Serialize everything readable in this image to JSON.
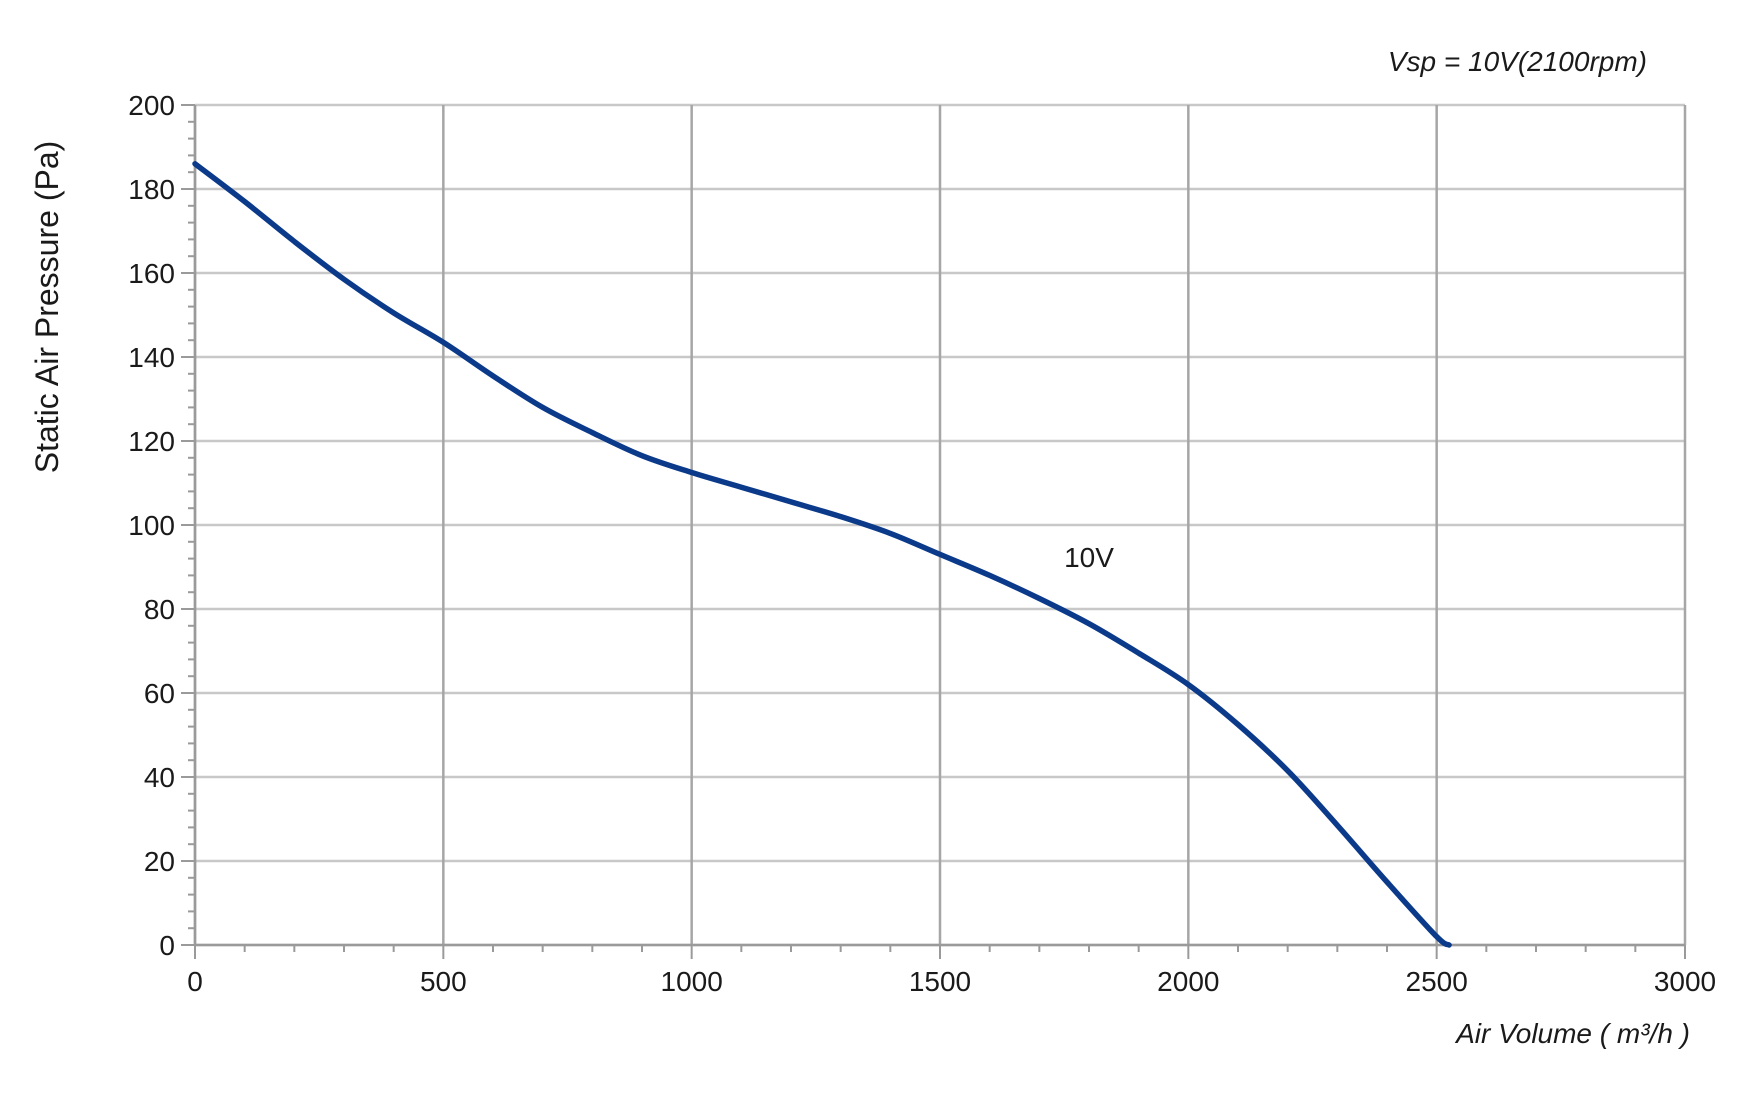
{
  "chart_data": {
    "type": "line",
    "annotation_top_right": "Vsp = 10V(2100rpm)",
    "xlabel": "Air Volume ( m³/h )",
    "ylabel": "Static Air Pressure  (Pa)",
    "xlim": [
      0,
      3000
    ],
    "ylim": [
      0,
      200
    ],
    "x_ticks": [
      0,
      500,
      1000,
      1500,
      2000,
      2500,
      3000
    ],
    "y_ticks": [
      0,
      20,
      40,
      60,
      80,
      100,
      120,
      140,
      160,
      180,
      200
    ],
    "x_minor_step": 100,
    "y_minor_step": 4,
    "grid": true,
    "line_color": "#0b3a8a",
    "grid_color": "#c8c8c8",
    "vgrid_color": "#a6a6a6",
    "series": [
      {
        "name": "10V",
        "label_at": [
          1800,
          90
        ],
        "x": [
          0,
          100,
          200,
          300,
          400,
          500,
          600,
          700,
          800,
          900,
          1000,
          1100,
          1200,
          1300,
          1400,
          1500,
          1600,
          1700,
          1800,
          1900,
          2000,
          2100,
          2200,
          2300,
          2400,
          2500,
          2525
        ],
        "y": [
          186,
          177,
          167.5,
          158.5,
          150.5,
          143.5,
          135.5,
          128,
          122,
          116.5,
          112.5,
          109,
          105.5,
          102,
          98,
          93,
          88,
          82.5,
          76.5,
          69.5,
          62,
          52.5,
          41.5,
          28.5,
          15,
          2,
          0
        ]
      }
    ]
  }
}
